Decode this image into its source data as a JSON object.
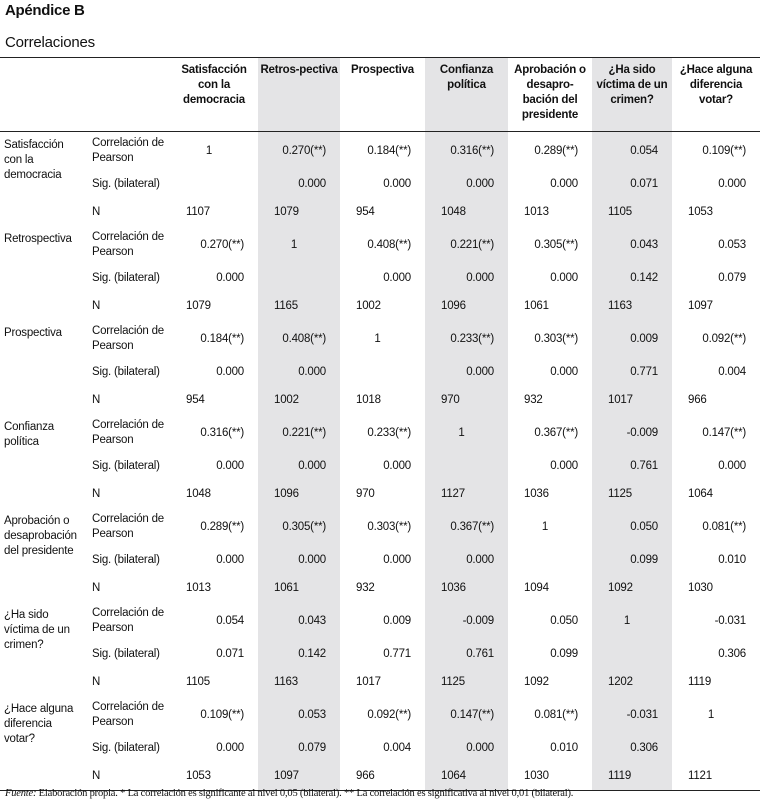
{
  "appendix_title": "Apéndice B",
  "table_title": "Correlaciones",
  "columns": [
    "Satisfacción con la democracia",
    "Retros-pectiva",
    "Prospectiva",
    "Confianza política",
    "Aprobación o desapro-bación del presidente",
    "¿Ha sido víctima de un crimen?",
    "¿Hace alguna diferencia votar?"
  ],
  "stat_labels": {
    "corr": "Correlación de Pearson",
    "sig": "Sig. (bilateral)",
    "n": "N"
  },
  "rows": [
    {
      "label": "Satisfacción con la democracia",
      "corr": [
        "1",
        "0.270(**)",
        "0.184(**)",
        "0.316(**)",
        "0.289(**)",
        "0.054",
        "0.109(**)"
      ],
      "sig": [
        "",
        "0.000",
        "0.000",
        "0.000",
        "0.000",
        "0.071",
        "0.000"
      ],
      "n": [
        "1107",
        "1079",
        "954",
        "1048",
        "1013",
        "1105",
        "1053"
      ]
    },
    {
      "label": "Retrospectiva",
      "corr": [
        "0.270(**)",
        "1",
        "0.408(**)",
        "0.221(**)",
        "0.305(**)",
        "0.043",
        "0.053"
      ],
      "sig": [
        "0.000",
        "",
        "0.000",
        "0.000",
        "0.000",
        "0.142",
        "0.079"
      ],
      "n": [
        "1079",
        "1165",
        "1002",
        "1096",
        "1061",
        "1163",
        "1097"
      ]
    },
    {
      "label": "Prospectiva",
      "corr": [
        "0.184(**)",
        "0.408(**)",
        "1",
        "0.233(**)",
        "0.303(**)",
        "0.009",
        "0.092(**)"
      ],
      "sig": [
        "0.000",
        "0.000",
        "",
        "0.000",
        "0.000",
        "0.771",
        "0.004"
      ],
      "n": [
        "954",
        "1002",
        "1018",
        "970",
        "932",
        "1017",
        "966"
      ]
    },
    {
      "label": "Confianza política",
      "corr": [
        "0.316(**)",
        "0.221(**)",
        "0.233(**)",
        "1",
        "0.367(**)",
        "-0.009",
        "0.147(**)"
      ],
      "sig": [
        "0.000",
        "0.000",
        "0.000",
        "",
        "0.000",
        "0.761",
        "0.000"
      ],
      "n": [
        "1048",
        "1096",
        "970",
        "1127",
        "1036",
        "1125",
        "1064"
      ]
    },
    {
      "label": "Aprobación o desaprobación del presidente",
      "corr": [
        "0.289(**)",
        "0.305(**)",
        "0.303(**)",
        "0.367(**)",
        "1",
        "0.050",
        "0.081(**)"
      ],
      "sig": [
        "0.000",
        "0.000",
        "0.000",
        "0.000",
        "",
        "0.099",
        "0.010"
      ],
      "n": [
        "1013",
        "1061",
        "932",
        "1036",
        "1094",
        "1092",
        "1030"
      ]
    },
    {
      "label": "¿Ha sido víctima de un crimen?",
      "corr": [
        "0.054",
        "0.043",
        "0.009",
        "-0.009",
        "0.050",
        "1",
        "-0.031"
      ],
      "sig": [
        "0.071",
        "0.142",
        "0.771",
        "0.761",
        "0.099",
        "",
        "0.306"
      ],
      "n": [
        "1105",
        "1163",
        "1017",
        "1125",
        "1092",
        "1202",
        "1119"
      ]
    },
    {
      "label": "¿Hace alguna diferencia votar?",
      "corr": [
        "0.109(**)",
        "0.053",
        "0.092(**)",
        "0.147(**)",
        "0.081(**)",
        "-0.031",
        "1"
      ],
      "sig": [
        "0.000",
        "0.079",
        "0.004",
        "0.000",
        "0.010",
        "0.306",
        ""
      ],
      "n": [
        "1053",
        "1097",
        "966",
        "1064",
        "1030",
        "1119",
        "1121"
      ]
    }
  ],
  "footnote": {
    "source_label": "Fuente:",
    "text": " Elaboración propia. * La correlación es significante al nivel 0,05 (bilateral).  ** La correlación es significativa al nivel 0,01 (bilateral)."
  },
  "colors": {
    "shade": "#e4e4e6"
  }
}
